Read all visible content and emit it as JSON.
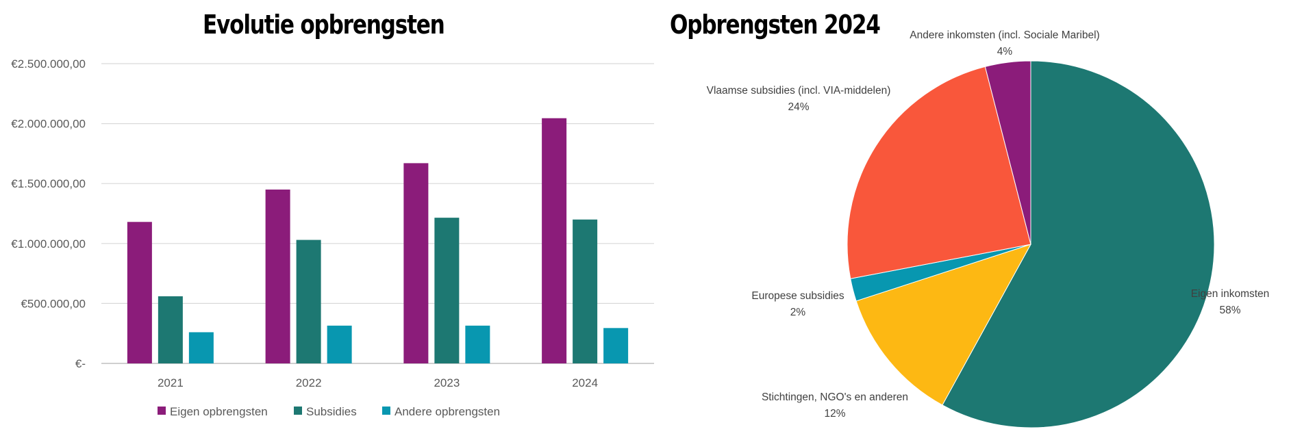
{
  "chart_data": [
    {
      "type": "bar",
      "title": "Evolutie opbrengsten",
      "categories": [
        "2021",
        "2022",
        "2023",
        "2024"
      ],
      "series": [
        {
          "name": "Eigen opbrengsten",
          "color": "#8b1c7a",
          "values": [
            1180000,
            1450000,
            1670000,
            2045000
          ]
        },
        {
          "name": "Subsidies",
          "color": "#1d7872",
          "values": [
            560000,
            1030000,
            1215000,
            1200000
          ]
        },
        {
          "name": "Andere opbrengsten",
          "color": "#0897b0",
          "values": [
            260000,
            315000,
            315000,
            295000
          ]
        }
      ],
      "y_ticks": [
        {
          "value": 0,
          "label": "€-"
        },
        {
          "value": 500000,
          "label": "€500.000,00"
        },
        {
          "value": 1000000,
          "label": "€1.000.000,00"
        },
        {
          "value": 1500000,
          "label": "€1.500.000,00"
        },
        {
          "value": 2000000,
          "label": "€2.000.000,00"
        },
        {
          "value": 2500000,
          "label": "€2.500.000,00"
        }
      ],
      "ylim": [
        0,
        2500000
      ],
      "grid": true,
      "legend": "bottom"
    },
    {
      "type": "pie",
      "title": "Opbrengsten 2024",
      "slices": [
        {
          "label": "Eigen inkomsten",
          "value": 58,
          "pct_label": "58%",
          "color": "#1d7872"
        },
        {
          "label": "Stichtingen, NGO's en anderen",
          "value": 12,
          "pct_label": "12%",
          "color": "#fdb813"
        },
        {
          "label": "Europese subsidies",
          "value": 2,
          "pct_label": "2%",
          "color": "#0897b0"
        },
        {
          "label": "Vlaamse subsidies (incl. VIA-middelen)",
          "value": 24,
          "pct_label": "24%",
          "color": "#f9573b"
        },
        {
          "label": "Andere inkomsten (incl. Sociale Maribel)",
          "value": 4,
          "pct_label": "4%",
          "color": "#8b1c7a"
        }
      ]
    }
  ]
}
